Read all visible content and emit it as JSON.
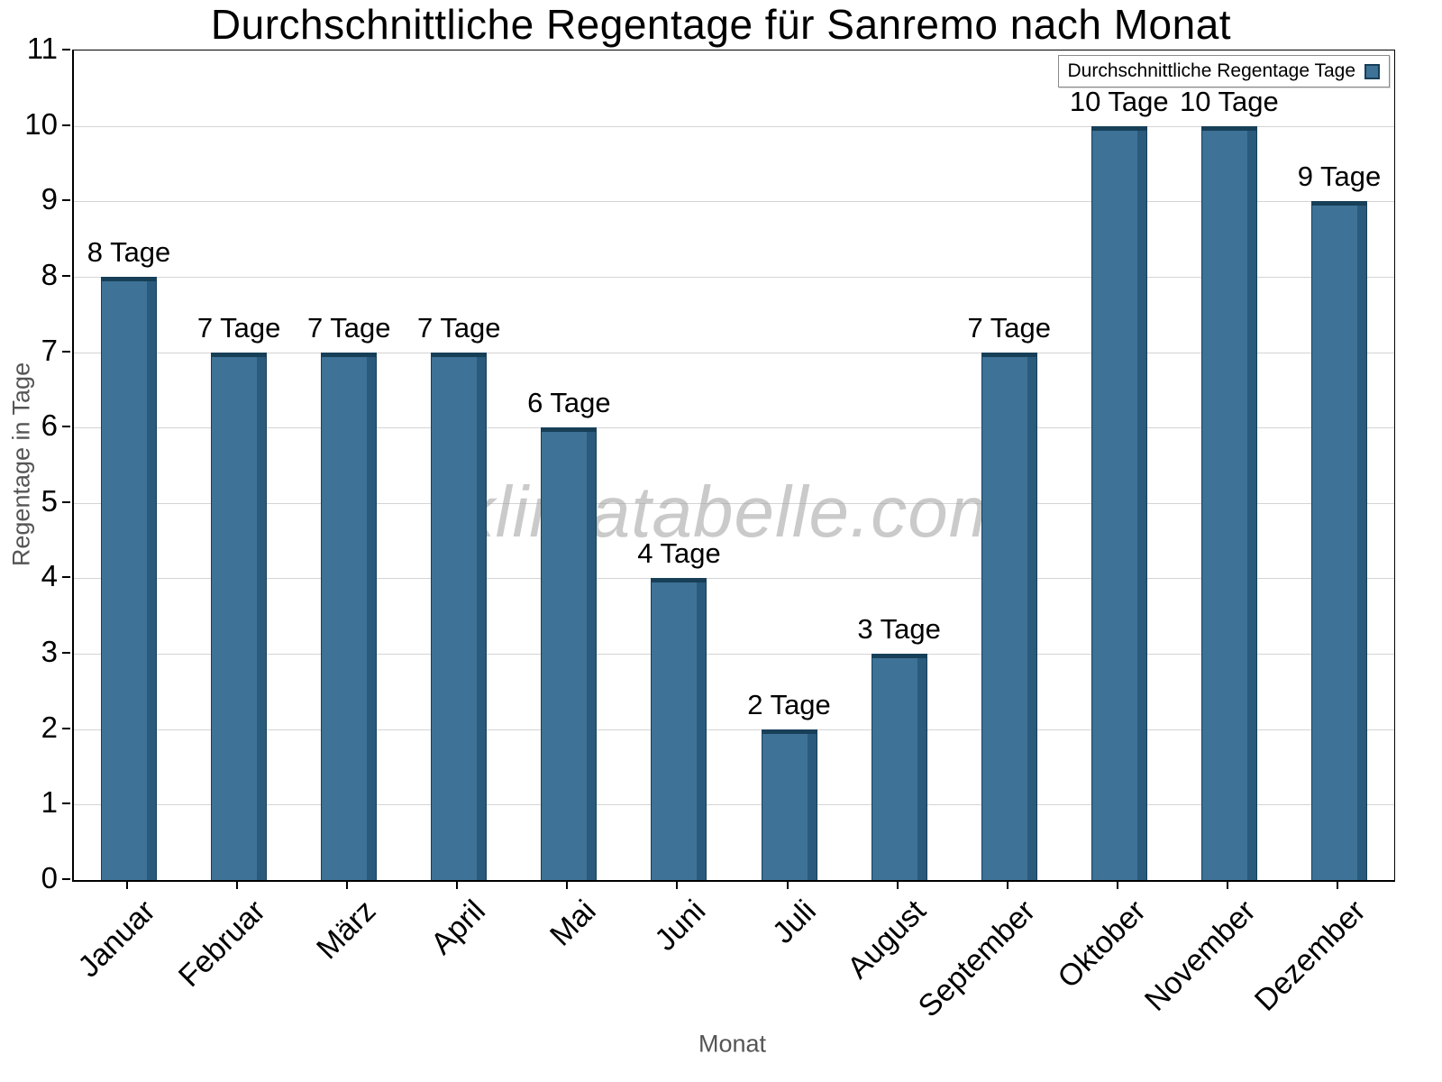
{
  "chart_data": {
    "type": "bar",
    "title": "Durchschnittliche Regentage für Sanremo nach Monat",
    "xlabel": "Monat",
    "ylabel": "Regentage in Tage",
    "watermark": "klimatabelle.com",
    "legend_label": "Durchschnittliche Regentage Tage",
    "legend_position": "top-right",
    "grid": true,
    "ylim": [
      0,
      11
    ],
    "yticks": [
      0,
      1,
      2,
      3,
      4,
      5,
      6,
      7,
      8,
      9,
      10,
      11
    ],
    "categories": [
      "Januar",
      "Februar",
      "März",
      "April",
      "Mai",
      "Juni",
      "Juli",
      "August",
      "September",
      "Oktober",
      "November",
      "Dezember"
    ],
    "values": [
      8,
      7,
      7,
      7,
      6,
      4,
      2,
      3,
      7,
      10,
      10,
      9
    ],
    "labels": [
      "8 Tage",
      "7 Tage",
      "7 Tage",
      "7 Tage",
      "6 Tage",
      "4 Tage",
      "2 Tage",
      "3 Tage",
      "7 Tage",
      "10 Tage",
      "10 Tage",
      "9 Tage"
    ],
    "unit": "Tage",
    "colors": {
      "bar": "#3e7296",
      "bar_side": "#2a5a7c",
      "bar_top": "#173f58",
      "grid": "#d4d4d4",
      "axis": "#000000",
      "axis_title": "#555555",
      "watermark": "#9e9e9e"
    }
  }
}
